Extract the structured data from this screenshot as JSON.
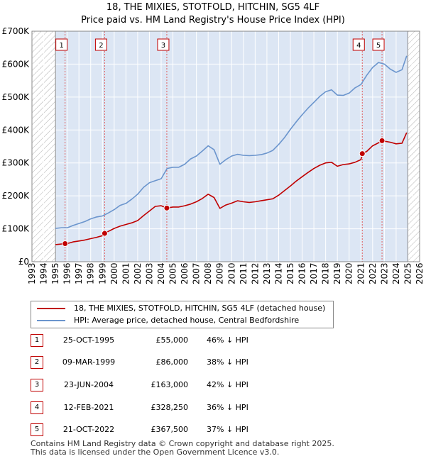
{
  "title_line1": "18, THE MIXIES, STOTFOLD, HITCHIN, SG5 4LF",
  "title_line2": "Price paid vs. HM Land Registry's House Price Index (HPI)",
  "colors": {
    "red": "#c00000",
    "blue": "#6b95cd",
    "band": "#dce6f4",
    "grid": "#ffffff",
    "hatch": "#b0b0b0",
    "marker_line": "#e06060"
  },
  "legend": {
    "red_label": "18, THE MIXIES, STOTFOLD, HITCHIN, SG5 4LF (detached house)",
    "blue_label": "HPI: Average price, detached house, Central Bedfordshire"
  },
  "sales": [
    {
      "num": "1",
      "date": "25-OCT-1995",
      "price": "£55,000",
      "hpi": "46% ↓ HPI"
    },
    {
      "num": "2",
      "date": "09-MAR-1999",
      "price": "£86,000",
      "hpi": "38% ↓ HPI"
    },
    {
      "num": "3",
      "date": "23-JUN-2004",
      "price": "£163,000",
      "hpi": "42% ↓ HPI"
    },
    {
      "num": "4",
      "date": "12-FEB-2021",
      "price": "£328,250",
      "hpi": "36% ↓ HPI"
    },
    {
      "num": "5",
      "date": "21-OCT-2022",
      "price": "£367,500",
      "hpi": "37% ↓ HPI"
    }
  ],
  "footer": {
    "line1": "Contains HM Land Registry data © Crown copyright and database right 2025.",
    "line2": "This data is licensed under the Open Government Licence v3.0."
  },
  "chart_data": {
    "type": "line",
    "title": "18, THE MIXIES, STOTFOLD, HITCHIN, SG5 4LF — Price paid vs. HM Land Registry's House Price Index (HPI)",
    "xlabel": "",
    "ylabel": "",
    "xlim": [
      1993,
      2026
    ],
    "ylim": [
      0,
      700000
    ],
    "yticks": [
      0,
      100000,
      200000,
      300000,
      400000,
      500000,
      600000,
      700000
    ],
    "ytick_labels": [
      "£0",
      "£100K",
      "£200K",
      "£300K",
      "£400K",
      "£500K",
      "£600K",
      "£700K"
    ],
    "xticks": [
      1993,
      1994,
      1995,
      1996,
      1997,
      1998,
      1999,
      2000,
      2001,
      2002,
      2003,
      2004,
      2005,
      2006,
      2007,
      2008,
      2009,
      2010,
      2011,
      2012,
      2013,
      2014,
      2015,
      2016,
      2017,
      2018,
      2019,
      2020,
      2021,
      2022,
      2023,
      2024,
      2025,
      2026
    ],
    "hatched_ranges": [
      [
        1993,
        1995
      ],
      [
        2025,
        2026
      ]
    ],
    "shaded_range": [
      1995,
      2025
    ],
    "grid": true,
    "sale_markers": [
      {
        "label": "1",
        "x": 1995.82,
        "y": 55000
      },
      {
        "label": "2",
        "x": 1999.19,
        "y": 86000
      },
      {
        "label": "3",
        "x": 2004.48,
        "y": 163000
      },
      {
        "label": "4",
        "x": 2021.12,
        "y": 328250
      },
      {
        "label": "5",
        "x": 2022.8,
        "y": 367500
      }
    ],
    "series": [
      {
        "name": "HPI: Average price, detached house, Central Bedfordshire",
        "color": "#6b95cd",
        "x": [
          1995.0,
          1995.5,
          1996.0,
          1996.5,
          1997.0,
          1997.5,
          1998.0,
          1998.5,
          1999.0,
          1999.5,
          2000.0,
          2000.5,
          2001.0,
          2001.5,
          2002.0,
          2002.5,
          2003.0,
          2003.5,
          2004.0,
          2004.5,
          2005.0,
          2005.5,
          2006.0,
          2006.5,
          2007.0,
          2007.5,
          2008.0,
          2008.5,
          2009.0,
          2009.5,
          2010.0,
          2010.5,
          2011.0,
          2011.5,
          2012.0,
          2012.5,
          2013.0,
          2013.5,
          2014.0,
          2014.5,
          2015.0,
          2015.5,
          2016.0,
          2016.5,
          2017.0,
          2017.5,
          2018.0,
          2018.5,
          2019.0,
          2019.5,
          2020.0,
          2020.5,
          2021.0,
          2021.5,
          2022.0,
          2022.5,
          2023.0,
          2023.5,
          2024.0,
          2024.5,
          2024.9
        ],
        "y": [
          101000,
          103000,
          103000,
          110000,
          116000,
          122000,
          130000,
          136000,
          139000,
          148000,
          158000,
          171000,
          177000,
          190000,
          205000,
          226000,
          240000,
          246000,
          252000,
          283000,
          287000,
          287000,
          296000,
          312000,
          321000,
          336000,
          352000,
          340000,
          296000,
          310000,
          321000,
          326000,
          323000,
          322000,
          323000,
          325000,
          330000,
          338000,
          356000,
          377000,
          402000,
          425000,
          446000,
          466000,
          484000,
          502000,
          516000,
          522000,
          506000,
          505000,
          512000,
          528000,
          538000,
          566000,
          590000,
          605000,
          600000,
          585000,
          575000,
          583000,
          625000
        ]
      },
      {
        "name": "18, THE MIXIES, STOTFOLD, HITCHIN, SG5 4LF (detached house)",
        "color": "#c00000",
        "x": [
          1995.0,
          1995.82,
          1996.0,
          1996.5,
          1997.0,
          1997.5,
          1998.0,
          1998.5,
          1999.0,
          1999.19,
          1999.5,
          2000.0,
          2000.5,
          2001.0,
          2001.5,
          2002.0,
          2002.5,
          2003.0,
          2003.5,
          2004.0,
          2004.48,
          2005.0,
          2005.5,
          2006.0,
          2006.5,
          2007.0,
          2007.5,
          2008.0,
          2008.5,
          2009.0,
          2009.5,
          2010.0,
          2010.5,
          2011.0,
          2011.5,
          2012.0,
          2012.5,
          2013.0,
          2013.5,
          2014.0,
          2014.5,
          2015.0,
          2015.5,
          2016.0,
          2016.5,
          2017.0,
          2017.5,
          2018.0,
          2018.5,
          2019.0,
          2019.5,
          2020.0,
          2020.5,
          2021.0,
          2021.12,
          2021.5,
          2022.0,
          2022.5,
          2022.8,
          2023.0,
          2023.5,
          2024.0,
          2024.5,
          2024.9
        ],
        "y": [
          52000,
          55000,
          55000,
          60000,
          63000,
          66000,
          70000,
          74000,
          79000,
          86000,
          92000,
          101000,
          108000,
          113000,
          118000,
          125000,
          140000,
          154000,
          168000,
          170000,
          163000,
          166000,
          166000,
          170000,
          175000,
          182000,
          192000,
          205000,
          195000,
          162000,
          172000,
          178000,
          185000,
          182000,
          180000,
          182000,
          185000,
          188000,
          191000,
          202000,
          216000,
          230000,
          245000,
          258000,
          271000,
          283000,
          293000,
          300000,
          302000,
          290000,
          295000,
          297000,
          302000,
          310000,
          328250,
          335000,
          352000,
          361000,
          367500,
          366000,
          363000,
          358000,
          360000,
          392000
        ]
      }
    ]
  }
}
